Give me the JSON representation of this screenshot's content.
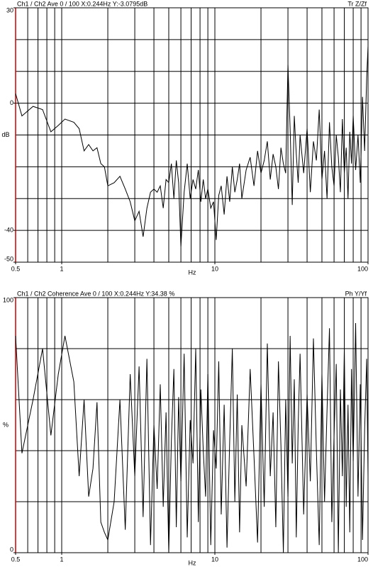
{
  "chart_data": [
    {
      "type": "line",
      "title": "Ch1 / Ch2  Ave 0 / 100  X:0.244Hz  Y:-3.0795dB",
      "trace_label": "Tr Z/Zf",
      "xlabel": "Hz",
      "ylabel": "dB",
      "log_x": true,
      "color": "#000000",
      "axis_color": "#cc0000",
      "xlim": [
        0.5,
        100
      ],
      "xticks": [
        0.5,
        1,
        10,
        100
      ],
      "xgrid": [
        0.6,
        0.7,
        0.8,
        0.9,
        1,
        2,
        3,
        4,
        5,
        6,
        7,
        8,
        9,
        10,
        20,
        30,
        40,
        50,
        60,
        70,
        80,
        90
      ],
      "ylim": [
        -50,
        30
      ],
      "yticks": [
        -50,
        -40,
        0,
        30
      ],
      "ygrid": [
        -40,
        -30,
        -20,
        -10,
        0,
        10,
        20
      ],
      "x": [
        0.5,
        0.55,
        0.65,
        0.75,
        0.85,
        0.95,
        1.05,
        1.2,
        1.3,
        1.4,
        1.5,
        1.6,
        1.7,
        1.8,
        1.9,
        2,
        2.2,
        2.4,
        2.6,
        2.8,
        3,
        3.2,
        3.4,
        3.6,
        3.8,
        4,
        4.2,
        4.4,
        4.6,
        4.8,
        5,
        5.2,
        5.4,
        5.6,
        5.8,
        6,
        6.3,
        6.6,
        6.9,
        7.2,
        7.5,
        7.8,
        8.1,
        8.4,
        8.7,
        9,
        9.4,
        9.8,
        10.2,
        10.6,
        11,
        11.5,
        12,
        12.5,
        13,
        13.5,
        14,
        14.5,
        15,
        16,
        17,
        18,
        19,
        20,
        21,
        22,
        23,
        24,
        25,
        26,
        27,
        28,
        29,
        30,
        31,
        32,
        33,
        34,
        35,
        36,
        38,
        40,
        42,
        44,
        46,
        48,
        50,
        52,
        54,
        56,
        58,
        60,
        62,
        64,
        66,
        68,
        70,
        72,
        74,
        76,
        78,
        80,
        83,
        86,
        89,
        92,
        95,
        98,
        100
      ],
      "values": [
        3,
        -4,
        -1,
        -2,
        -9,
        -7,
        -5,
        -6,
        -8,
        -15,
        -13,
        -15,
        -14,
        -19,
        -20,
        -26,
        -25,
        -23,
        -27,
        -31,
        -37,
        -34,
        -42,
        -33,
        -28,
        -27,
        -28,
        -26,
        -33,
        -24,
        -25,
        -19,
        -30,
        -18,
        -25,
        -45,
        -28,
        -19,
        -30,
        -24,
        -27,
        -21,
        -31,
        -24,
        -30,
        -27,
        -33,
        -31,
        -43,
        -29,
        -26,
        -35,
        -23,
        -31,
        -20,
        -28,
        -24,
        -19,
        -30,
        -21,
        -17,
        -26,
        -15,
        -22,
        -18,
        -12,
        -24,
        -16,
        -20,
        -27,
        -14,
        -19,
        -22,
        12,
        -8,
        -32,
        -4,
        -16,
        -25,
        -10,
        -22,
        -8,
        -28,
        -12,
        -18,
        -2,
        -24,
        -15,
        -30,
        -6,
        -20,
        -26,
        -10,
        -17,
        -28,
        -5,
        -22,
        -14,
        -30,
        -9,
        -19,
        -4,
        -21,
        -10,
        -25,
        2,
        -15,
        8,
        18
      ]
    },
    {
      "type": "line",
      "title": "Ch1 / Ch2  Coherence Ave 0 / 100  X:0.244Hz  Y:34.38 %",
      "trace_label": "Ph Y/Yf",
      "xlabel": "Hz",
      "ylabel": "%",
      "log_x": true,
      "color": "#000000",
      "axis_color": "#cc0000",
      "xlim": [
        0.5,
        100
      ],
      "xticks": [
        0.5,
        1,
        10,
        100
      ],
      "xgrid": [
        0.6,
        0.7,
        0.8,
        0.9,
        1,
        2,
        3,
        4,
        5,
        6,
        7,
        8,
        9,
        10,
        20,
        30,
        40,
        50,
        60,
        70,
        80,
        90
      ],
      "ylim": [
        0,
        100
      ],
      "yticks": [
        0,
        100
      ],
      "ygrid": [
        20,
        40,
        60,
        80
      ],
      "x": [
        0.5,
        0.55,
        0.65,
        0.75,
        0.85,
        0.95,
        1.05,
        1.2,
        1.3,
        1.4,
        1.5,
        1.6,
        1.7,
        1.8,
        1.9,
        2,
        2.2,
        2.4,
        2.6,
        2.8,
        3,
        3.2,
        3.4,
        3.6,
        3.8,
        4,
        4.2,
        4.4,
        4.6,
        4.8,
        5,
        5.2,
        5.4,
        5.6,
        5.8,
        6,
        6.3,
        6.6,
        6.9,
        7.2,
        7.5,
        7.8,
        8.1,
        8.4,
        8.7,
        9,
        9.4,
        9.8,
        10.2,
        10.6,
        11,
        11.5,
        12,
        12.5,
        13,
        13.5,
        14,
        14.5,
        15,
        16,
        17,
        18,
        19,
        20,
        21,
        22,
        23,
        24,
        25,
        26,
        27,
        28,
        29,
        30,
        31,
        32,
        33,
        34,
        35,
        36,
        38,
        40,
        42,
        44,
        46,
        48,
        50,
        52,
        54,
        56,
        58,
        60,
        62,
        64,
        66,
        68,
        70,
        72,
        74,
        76,
        78,
        80,
        83,
        86,
        89,
        92,
        95,
        98,
        100
      ],
      "values": [
        85,
        39,
        60,
        80,
        46,
        70,
        85,
        67,
        30,
        60,
        22,
        33,
        59,
        12,
        8,
        5,
        20,
        60,
        9,
        70,
        30,
        73,
        14,
        76,
        3,
        50,
        25,
        66,
        18,
        55,
        0,
        44,
        72,
        10,
        61,
        28,
        78,
        6,
        52,
        35,
        80,
        12,
        64,
        40,
        22,
        70,
        3,
        48,
        33,
        75,
        15,
        58,
        2,
        44,
        80,
        20,
        62,
        8,
        50,
        26,
        72,
        38,
        4,
        66,
        18,
        82,
        30,
        55,
        10,
        75,
        42,
        0,
        60,
        22,
        85,
        35,
        68,
        6,
        50,
        78,
        15,
        62,
        28,
        84,
        40,
        3,
        70,
        20,
        56,
        88,
        12,
        46,
        74,
        0,
        64,
        30,
        80,
        18,
        58,
        8,
        72,
        36,
        90,
        22,
        66,
        5,
        48,
        76,
        30
      ]
    }
  ]
}
